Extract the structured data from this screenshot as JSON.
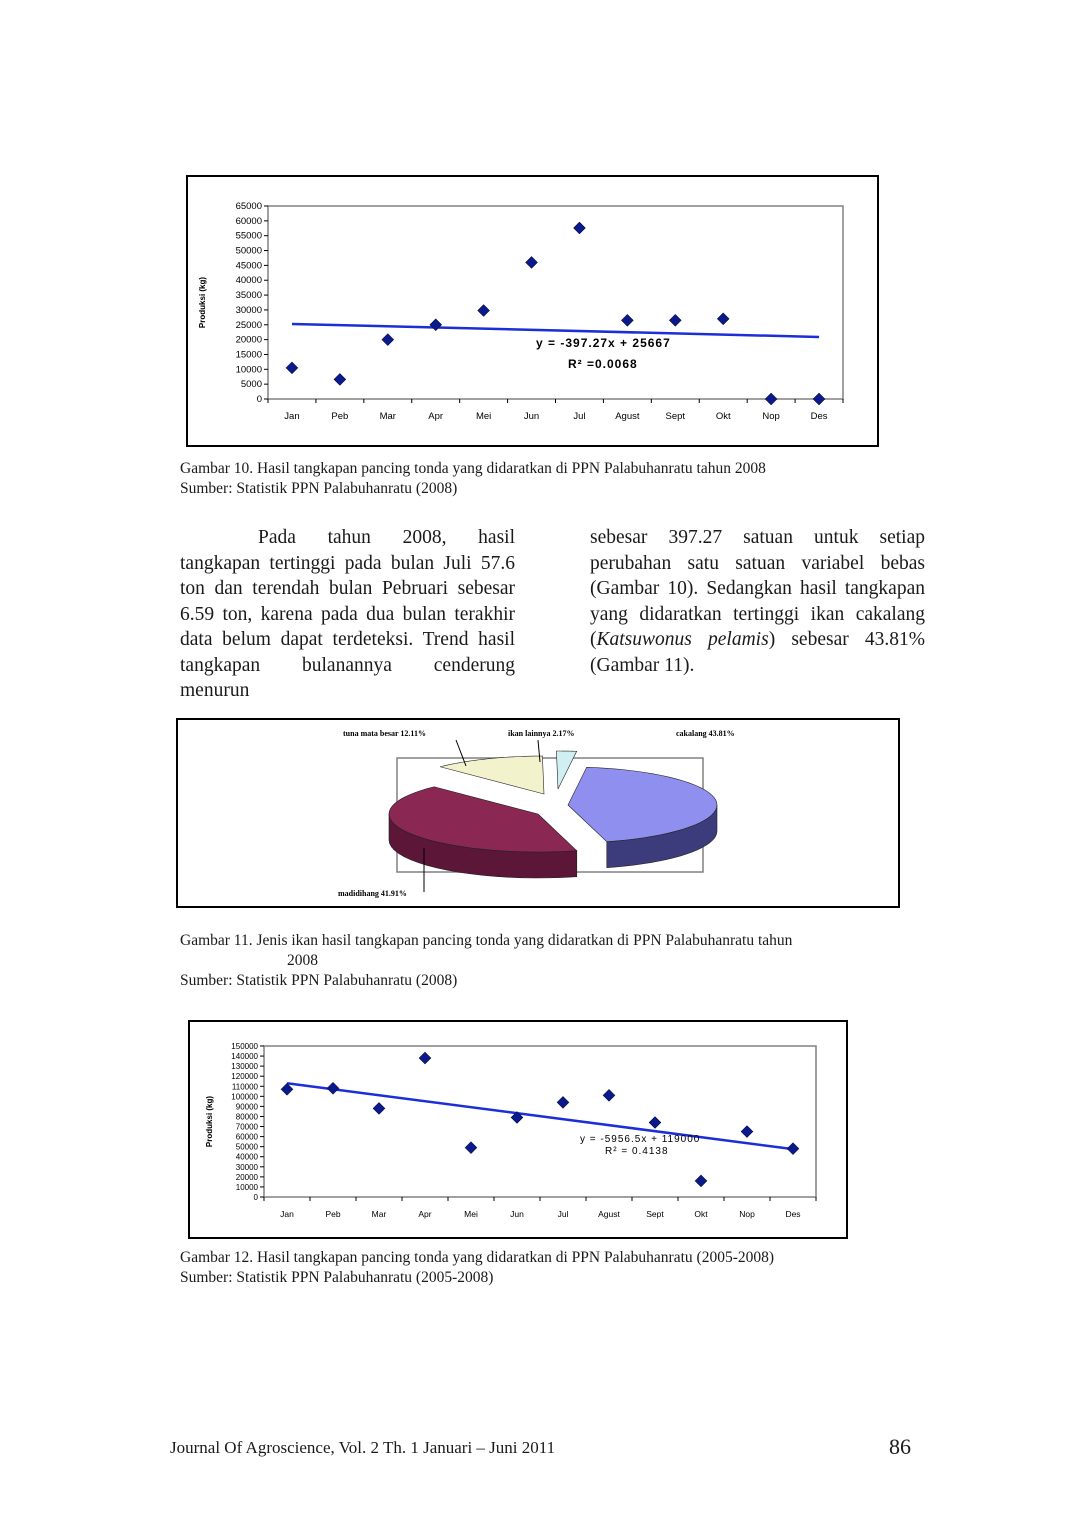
{
  "figure10": {
    "caption": "Gambar 10.  Hasil tangkapan pancing tonda yang didaratkan  di PPN Palabuhanratu tahun 2008",
    "source": "Sumber: Statistik PPN Palabuhanratu (2008)"
  },
  "figure11": {
    "caption_line1": "Gambar 11.   Jenis ikan hasil tangkapan pancing tonda yang didaratkan  di PPN Palabuhanratu tahun",
    "caption_line2": "2008",
    "source": "Sumber: Statistik PPN Palabuhanratu (2008)"
  },
  "figure12": {
    "caption": "Gambar 12. Hasil tangkapan pancing tonda yang didaratkan  di PPN Palabuhanratu (2005-2008)",
    "source": "Sumber: Statistik PPN Palabuhanratu (2005-2008)"
  },
  "body_text": {
    "left": "Pada tahun 2008, hasil tangkapan tertinggi pada bulan Juli 57.6 ton dan terendah bulan Pebruari sebesar 6.59 ton, karena pada dua bulan terakhir data belum dapat terdeteksi. Trend hasil tangkapan bulanannya cenderung menurun",
    "right_part1": "sebesar 397.27 satuan untuk setiap perubahan satu satuan variabel bebas (Gambar 10). Sedangkan hasil tangkapan yang didaratkan tertinggi ikan cakalang (",
    "right_italic": "Katsuwonus pelamis",
    "right_part2": ") sebesar 43.81% (Gambar 11)."
  },
  "footer": {
    "journal": "Journal Of Agroscience, Vol. 2 Th. 1 Januari –  Juni 2011",
    "page_number": "86"
  },
  "chart_data": [
    {
      "type": "scatter",
      "title": "",
      "ylabel": "Produksi (kg)",
      "xlabel": "",
      "categories": [
        "Jan",
        "Peb",
        "Mar",
        "Apr",
        "Mei",
        "Jun",
        "Jul",
        "Agust",
        "Sept",
        "Okt",
        "Nop",
        "Des"
      ],
      "values": [
        10500,
        6590,
        20000,
        25000,
        29800,
        46000,
        57600,
        26500,
        26500,
        27000,
        0,
        0
      ],
      "ylim": [
        0,
        65000
      ],
      "yticks": [
        0,
        5000,
        10000,
        15000,
        20000,
        25000,
        30000,
        35000,
        40000,
        45000,
        50000,
        55000,
        60000,
        65000
      ],
      "trendline": {
        "slope": -397.27,
        "intercept": 25667
      },
      "equation": "y = -397.27x + 25667",
      "r2": "R² =0.0068",
      "marker_color": "#0a1a8c",
      "trend_color": "#1c2ed8",
      "plot_background": "#ffffff"
    },
    {
      "type": "pie",
      "title": "",
      "slices": [
        {
          "label": "cakalang 43.81%",
          "value": 43.81,
          "color": "#8f8fef",
          "side": "#3c3c7c"
        },
        {
          "label": "madidihang 41.91%",
          "value": 41.91,
          "color": "#8a2752",
          "side": "#5c1638"
        },
        {
          "label": "tuna mata besar 12.11%",
          "value": 12.11,
          "color": "#f2f2cc",
          "side": "#7a7a5a"
        },
        {
          "label": "ikan lainnya 2.17%",
          "value": 2.17,
          "color": "#cfeff2",
          "side": "#5a8a8a"
        }
      ]
    },
    {
      "type": "scatter",
      "title": "",
      "ylabel": "Produksi (kg)",
      "xlabel": "",
      "categories": [
        "Jan",
        "Peb",
        "Mar",
        "Apr",
        "Mei",
        "Jun",
        "Jul",
        "Agust",
        "Sept",
        "Okt",
        "Nop",
        "Des"
      ],
      "values": [
        107000,
        108000,
        88000,
        138000,
        49000,
        79000,
        94000,
        101000,
        74000,
        16000,
        65000,
        48000
      ],
      "ylim": [
        0,
        150000
      ],
      "yticks": [
        0,
        10000,
        20000,
        30000,
        40000,
        50000,
        60000,
        70000,
        80000,
        90000,
        100000,
        110000,
        120000,
        130000,
        140000,
        150000
      ],
      "trendline": {
        "slope": -5956.5,
        "intercept": 119000
      },
      "equation": "y = -5956.5x + 119000",
      "r2": "R² = 0.4138",
      "marker_color": "#0a1a8c",
      "trend_color": "#1c2ed8",
      "plot_background": "#ffffff"
    }
  ]
}
